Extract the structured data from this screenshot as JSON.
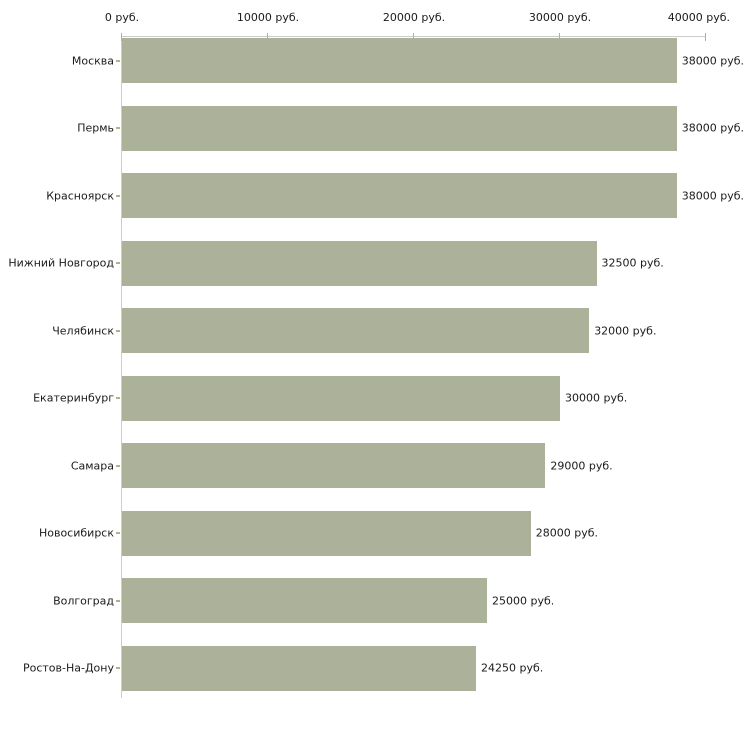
{
  "chart_data": {
    "type": "bar",
    "orientation": "horizontal",
    "title": "",
    "xlabel": "",
    "ylabel": "",
    "unit": "руб.",
    "categories": [
      "Москва",
      "Пермь",
      "Красноярск",
      "Нижний Новгород",
      "Челябинск",
      "Екатеринбург",
      "Самара",
      "Новосибирск",
      "Волгоград",
      "Ростов-На-Дону"
    ],
    "values": [
      38000,
      38000,
      38000,
      32500,
      32000,
      30000,
      29000,
      28000,
      25000,
      24250
    ],
    "value_labels": [
      "38000 руб.",
      "38000 руб.",
      "38000 руб.",
      "32500 руб.",
      "32000 руб.",
      "30000 руб.",
      "29000 руб.",
      "28000 руб.",
      "25000 руб.",
      "24250 руб."
    ],
    "xlim": [
      0,
      40000
    ],
    "x_ticks": [
      0,
      10000,
      20000,
      30000,
      40000
    ],
    "x_tick_labels": [
      "0 руб.",
      "10000 руб.",
      "20000 руб.",
      "30000 руб.",
      "40000 руб."
    ],
    "grid": false,
    "legend_position": "none",
    "colors": {
      "bar_fill": "#acb29a",
      "tick_mark": "#b3b283",
      "axis_line": "#cccccc",
      "text": "#1b1b1b",
      "background": "#ffffff"
    }
  }
}
